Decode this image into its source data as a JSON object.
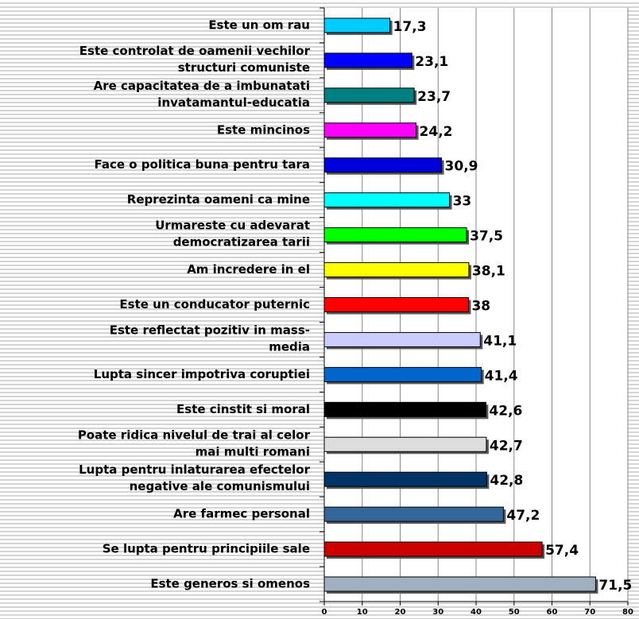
{
  "chart_data": {
    "type": "bar",
    "orientation": "horizontal",
    "categories": [
      "Este un om rau",
      "Este controlat de oamenii vechilor\nstructuri comuniste",
      "Are capacitatea de a imbunatati\ninvatamantul-educatia",
      "Este mincinos",
      "Face o politica buna pentru tara",
      "Reprezinta oameni ca mine",
      "Urmareste cu adevarat\ndemocratizarea tarii",
      "Am incredere in el",
      "Este un conducator puternic",
      "Este reflectat pozitiv in mass-\nmedia",
      "Lupta sincer impotriva coruptiei",
      "Este cinstit si moral",
      "Poate ridica nivelul de trai al celor\nmai multi romani",
      "Lupta pentru inlaturarea efectelor\nnegative ale comunismului",
      "Are farmec personal",
      "Se lupta pentru principiile sale",
      "Este generos si omenos"
    ],
    "values": [
      17.3,
      23.1,
      23.7,
      24.2,
      30.9,
      33,
      37.5,
      38.1,
      38,
      41.1,
      41.4,
      42.6,
      42.7,
      42.8,
      47.2,
      57.4,
      71.5
    ],
    "value_labels": [
      "17,3",
      "23,1",
      "23,7",
      "24,2",
      "30,9",
      "33",
      "37,5",
      "38,1",
      "38",
      "41,1",
      "41,4",
      "42,6",
      "42,7",
      "42,8",
      "47,2",
      "57,4",
      "71,5"
    ],
    "colors": [
      "#00ccff",
      "#0000ff",
      "#008080",
      "#ff00ff",
      "#0000dd",
      "#00ffff",
      "#00ff00",
      "#ffff00",
      "#ff0000",
      "#ccccff",
      "#0066cc",
      "#000000",
      "#dddddd",
      "#003366",
      "#336699",
      "#cc0000",
      "#a0b0c0"
    ],
    "xlim": [
      0,
      80
    ],
    "xticks": [
      0,
      10,
      20,
      30,
      40,
      50,
      60,
      70,
      80
    ],
    "grid": true
  }
}
